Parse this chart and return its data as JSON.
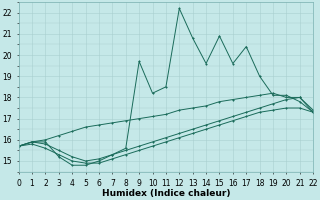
{
  "title": "",
  "xlabel": "Humidex (Indice chaleur)",
  "ylabel": "",
  "background_color": "#c5e8e8",
  "grid_color": "#aacfcf",
  "line_color": "#1a6b5a",
  "x_values": [
    0,
    1,
    2,
    3,
    4,
    5,
    6,
    7,
    8,
    9,
    10,
    11,
    12,
    13,
    14,
    15,
    16,
    17,
    18,
    19,
    20,
    21,
    22
  ],
  "line_noisy": [
    15.7,
    15.9,
    15.9,
    15.2,
    14.8,
    14.8,
    15.0,
    15.3,
    15.6,
    19.7,
    18.2,
    18.5,
    22.2,
    20.8,
    19.6,
    20.9,
    19.6,
    20.4,
    19.0,
    18.1,
    18.1,
    17.8,
    17.3
  ],
  "line_upper": [
    15.7,
    15.9,
    16.0,
    16.2,
    16.4,
    16.6,
    16.7,
    16.8,
    16.9,
    17.0,
    17.1,
    17.2,
    17.4,
    17.5,
    17.6,
    17.8,
    17.9,
    18.0,
    18.1,
    18.2,
    18.0,
    18.0,
    17.4
  ],
  "line_mid": [
    15.7,
    15.9,
    15.8,
    15.5,
    15.2,
    15.0,
    15.1,
    15.3,
    15.5,
    15.7,
    15.9,
    16.1,
    16.3,
    16.5,
    16.7,
    16.9,
    17.1,
    17.3,
    17.5,
    17.7,
    17.9,
    18.0,
    17.3
  ],
  "line_lower": [
    15.7,
    15.8,
    15.6,
    15.3,
    15.0,
    14.9,
    14.9,
    15.1,
    15.3,
    15.5,
    15.7,
    15.9,
    16.1,
    16.3,
    16.5,
    16.7,
    16.9,
    17.1,
    17.3,
    17.4,
    17.5,
    17.5,
    17.3
  ],
  "xlim": [
    0,
    22
  ],
  "ylim": [
    14.5,
    22.5
  ],
  "yticks": [
    15,
    16,
    17,
    18,
    19,
    20,
    21,
    22
  ],
  "xticks": [
    0,
    1,
    2,
    3,
    4,
    5,
    6,
    7,
    8,
    9,
    10,
    11,
    12,
    13,
    14,
    15,
    16,
    17,
    18,
    19,
    20,
    21,
    22
  ],
  "tick_fontsize": 5.5,
  "xlabel_fontsize": 6.5
}
